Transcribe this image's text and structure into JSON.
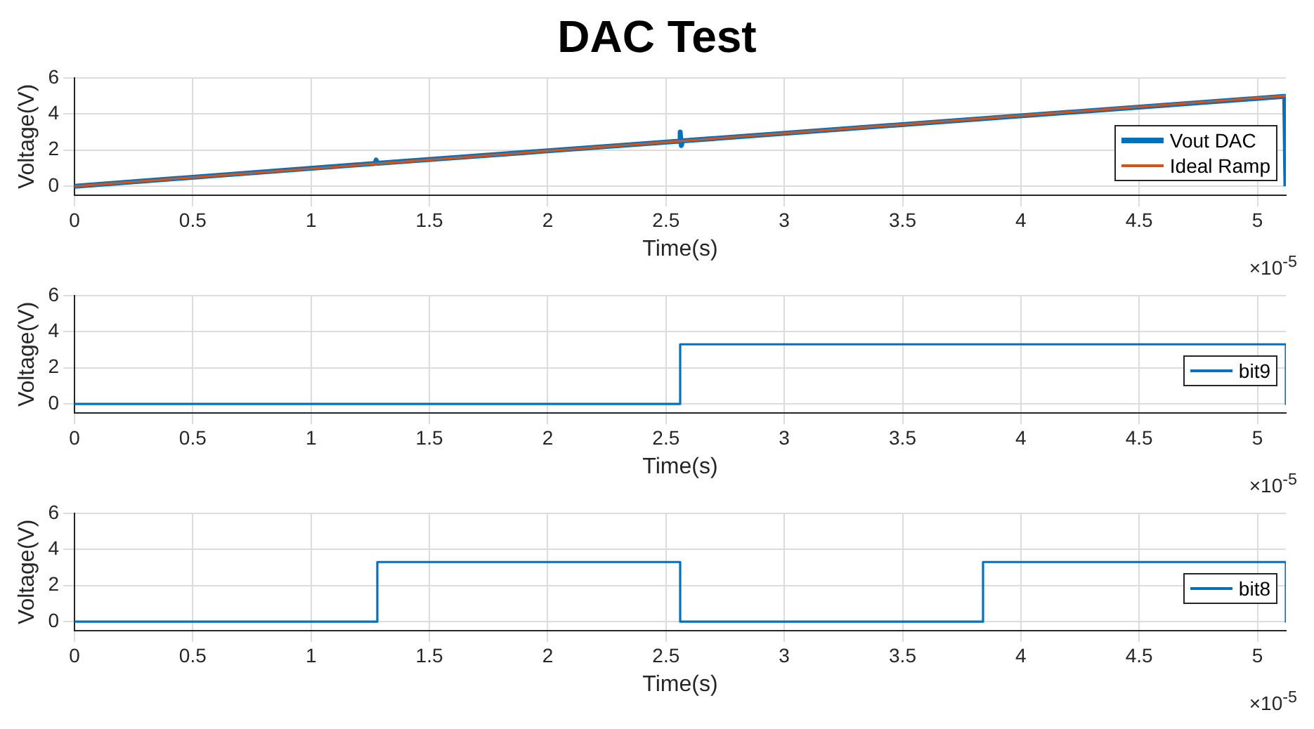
{
  "chart_data": [
    {
      "type": "line",
      "title": "DAC Test",
      "xlabel": "Time(s)",
      "ylabel": "Voltage(V)",
      "xlim": [
        0,
        5.12
      ],
      "xticks": [
        0,
        0.5,
        1,
        1.5,
        2,
        2.5,
        3,
        3.5,
        4,
        4.5,
        5
      ],
      "ylim": [
        -0.5,
        6
      ],
      "yticks": [
        0,
        2,
        4,
        6
      ],
      "grid": true,
      "legend": "right",
      "annotations": [
        "×10$^{-5}$"
      ],
      "series": [
        {
          "name": "Vout DAC",
          "color": "#0072bd",
          "x": [
            0,
            1.27,
            1.275,
            1.28,
            2.555,
            2.56,
            2.565,
            2.57,
            5.11,
            5.115,
            5.12
          ],
          "values": [
            0,
            1.26,
            1.45,
            1.27,
            2.49,
            3.0,
            2.25,
            2.51,
            4.97,
            4.97,
            0
          ]
        },
        {
          "name": "Ideal Ramp",
          "color": "#d95319",
          "x": [
            0,
            5.12
          ],
          "values": [
            0,
            5.0
          ]
        }
      ]
    },
    {
      "type": "line",
      "xlabel": "Time(s)",
      "ylabel": "Voltage(V)",
      "xlim": [
        0,
        5.12
      ],
      "xticks": [
        0,
        0.5,
        1,
        1.5,
        2,
        2.5,
        3,
        3.5,
        4,
        4.5,
        5
      ],
      "ylim": [
        -0.5,
        6
      ],
      "yticks": [
        0,
        2,
        4,
        6
      ],
      "grid": true,
      "legend": "right",
      "annotations": [
        "×10$^{-5}$"
      ],
      "series": [
        {
          "name": "bit9",
          "color": "#0072bd",
          "x": [
            0,
            2.56,
            2.56,
            5.12,
            5.12
          ],
          "values": [
            0,
            0,
            3.3,
            3.3,
            0
          ]
        }
      ]
    },
    {
      "type": "line",
      "xlabel": "Time(s)",
      "ylabel": "Voltage(V)",
      "xlim": [
        0,
        5.12
      ],
      "xticks": [
        0,
        0.5,
        1,
        1.5,
        2,
        2.5,
        3,
        3.5,
        4,
        4.5,
        5
      ],
      "ylim": [
        -0.5,
        6
      ],
      "yticks": [
        0,
        2,
        4,
        6
      ],
      "grid": true,
      "legend": "right",
      "annotations": [
        "×10$^{-5}$"
      ],
      "series": [
        {
          "name": "bit8",
          "color": "#0072bd",
          "x": [
            0,
            1.28,
            1.28,
            2.56,
            2.56,
            3.84,
            3.84,
            5.12,
            5.12
          ],
          "values": [
            0,
            0,
            3.3,
            3.3,
            0,
            0,
            3.3,
            3.3,
            0
          ]
        }
      ]
    }
  ]
}
